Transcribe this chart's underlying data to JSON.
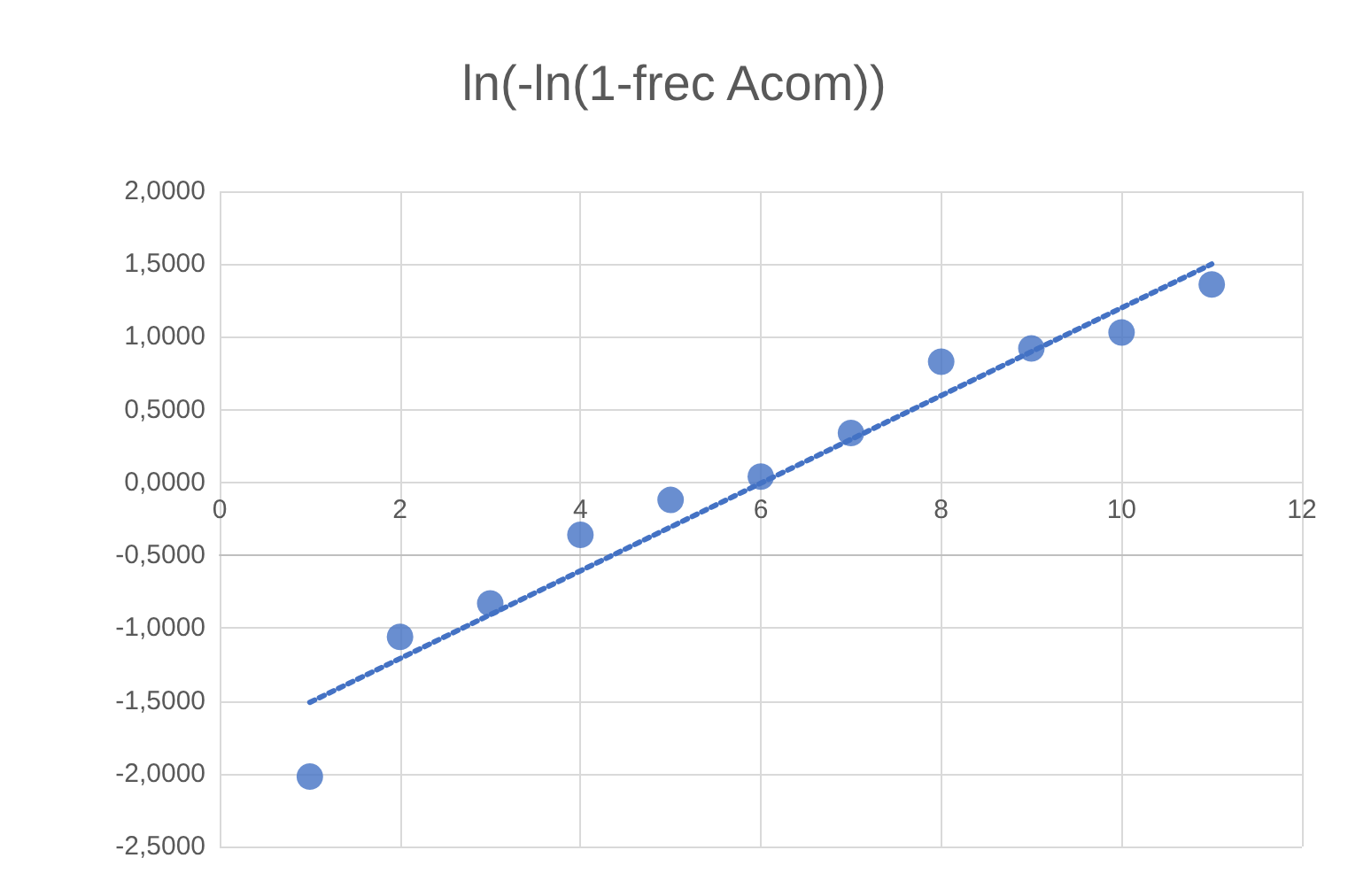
{
  "chart_data": {
    "type": "scatter",
    "title": "ln(-ln(1-frec Acom))",
    "x": [
      1,
      2,
      3,
      4,
      5,
      6,
      7,
      8,
      9,
      10,
      11
    ],
    "series": [
      {
        "color": "#4472c4",
        "values": [
          -2.02,
          -1.06,
          -0.83,
          -0.36,
          -0.12,
          0.04,
          0.34,
          0.83,
          0.92,
          1.03,
          1.36
        ],
        "marker": "circle"
      },
      {
        "type": "line",
        "color": "#4472c4",
        "x": [
          1,
          11
        ],
        "values": [
          -1.51,
          1.5
        ],
        "line_style": "dotted",
        "marker": "none"
      }
    ],
    "xlim": [
      0,
      12
    ],
    "xticks": [
      0,
      2,
      4,
      6,
      8,
      10,
      12
    ],
    "ylim": [
      -2.5,
      2
    ],
    "yticks": [
      {
        "value": -2.5,
        "label": "-2,5000"
      },
      {
        "value": -2,
        "label": "-2,0000"
      },
      {
        "value": -1.5,
        "label": "-1,5000"
      },
      {
        "value": -1,
        "label": "-1,0000"
      },
      {
        "value": -0.5,
        "label": "-0,5000"
      },
      {
        "value": 0,
        "label": "0,0000"
      },
      {
        "value": 0.5,
        "label": "0,5000"
      },
      {
        "value": 1,
        "label": "1,0000"
      },
      {
        "value": 1.5,
        "label": "1,5000"
      },
      {
        "value": 2,
        "label": "2,0000"
      }
    ],
    "grid": true
  }
}
